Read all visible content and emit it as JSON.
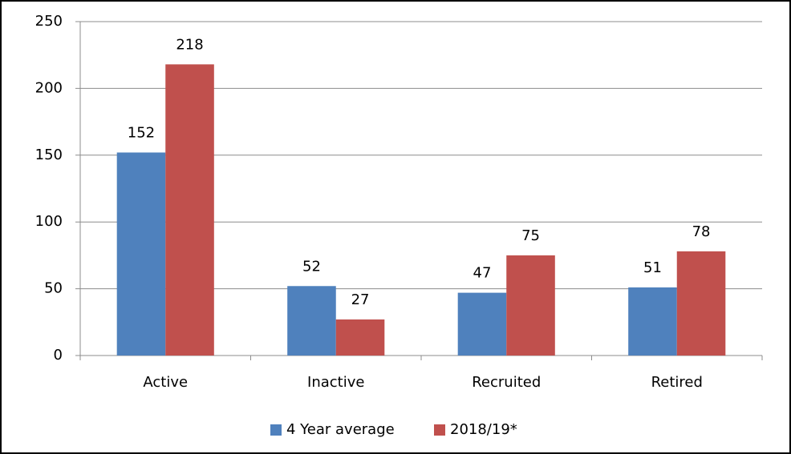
{
  "chart_data": {
    "type": "bar",
    "categories": [
      "Active",
      "Inactive",
      "Recruited",
      "Retired"
    ],
    "series": [
      {
        "name": "4 Year average",
        "color": "#4f81bd",
        "values": [
          152,
          52,
          47,
          51
        ]
      },
      {
        "name": "2018/19*",
        "color": "#c0504d",
        "values": [
          218,
          27,
          75,
          78
        ]
      }
    ],
    "ylim": [
      0,
      250
    ],
    "yticks": [
      0,
      50,
      100,
      150,
      200,
      250
    ],
    "grid": true,
    "legend": "bottom"
  }
}
